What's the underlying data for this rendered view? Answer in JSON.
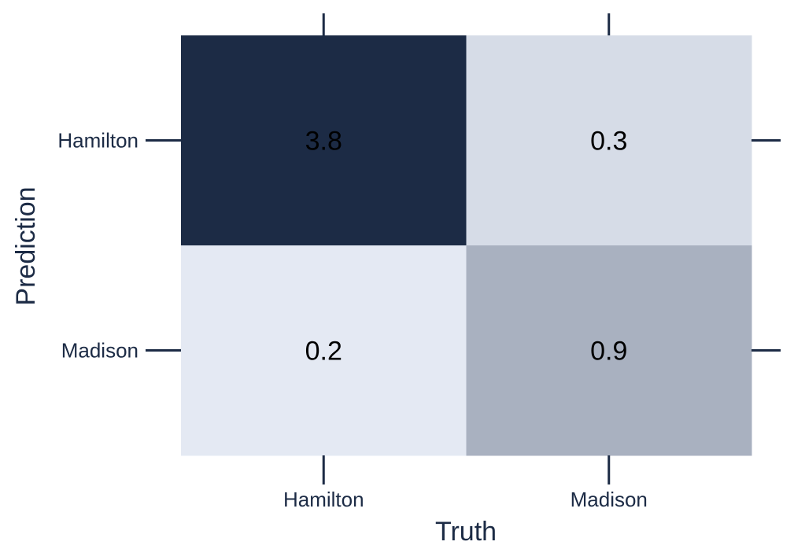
{
  "chart_data": {
    "type": "heatmap",
    "title": "",
    "xlabel": "Truth",
    "ylabel": "Prediction",
    "x_categories": [
      "Hamilton",
      "Madison"
    ],
    "y_categories": [
      "Hamilton",
      "Madison"
    ],
    "values": [
      [
        3.8,
        0.3
      ],
      [
        0.2,
        0.9
      ]
    ],
    "cell_labels": [
      [
        "3.8",
        "0.3"
      ],
      [
        "0.2",
        "0.9"
      ]
    ],
    "color_scale": {
      "low": "#e4e9f3",
      "high": "#1c2b45"
    },
    "axis_color": "#1c2b45",
    "grid": false,
    "legend": "none"
  }
}
